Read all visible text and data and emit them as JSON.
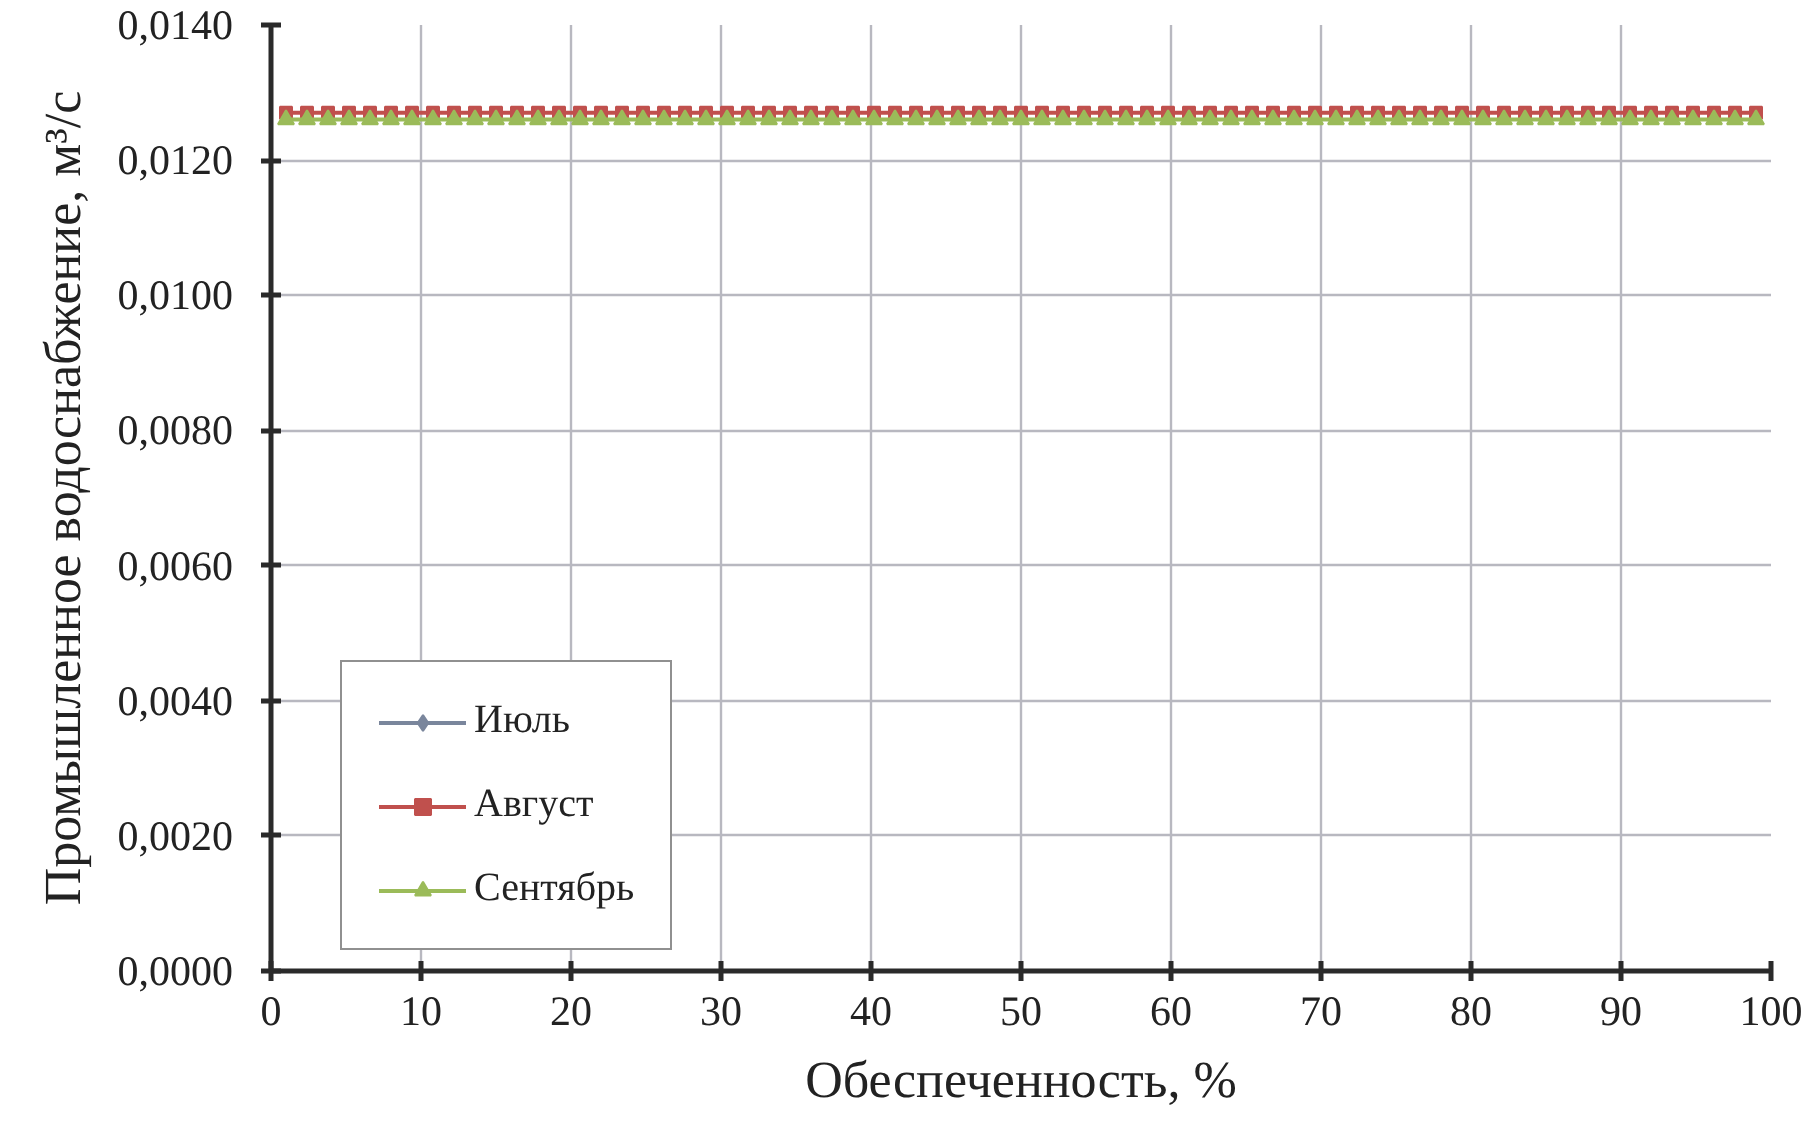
{
  "chart_data": {
    "type": "line",
    "xlabel": "Обеспеченность, %",
    "ylabel": "Промышленное водоснабжение, м³/с",
    "x": [
      1,
      2.4,
      3.8,
      5.2,
      6.6,
      8,
      9.4,
      10.8,
      12.2,
      13.6,
      15,
      16.4,
      17.8,
      19.2,
      20.6,
      22,
      23.4,
      24.8,
      26.2,
      27.6,
      29,
      30.4,
      31.8,
      33.2,
      34.6,
      36,
      37.4,
      38.8,
      40.2,
      41.6,
      43,
      44.4,
      45.8,
      47.2,
      48.6,
      50,
      51.4,
      52.8,
      54.2,
      55.6,
      57,
      58.4,
      59.8,
      61.2,
      62.6,
      64,
      65.4,
      66.8,
      68.2,
      69.6,
      71,
      72.4,
      73.8,
      75.2,
      76.6,
      78,
      79.4,
      80.8,
      82.2,
      83.6,
      85,
      86.4,
      87.8,
      89.2,
      90.6,
      92,
      93.4,
      94.8,
      96.2,
      97.6,
      99
    ],
    "series": [
      {
        "name": "Июль",
        "color": "#7a869c",
        "marker": "diamond",
        "values": [
          null,
          null,
          null,
          null,
          null,
          null,
          null,
          null,
          null,
          null,
          null,
          null,
          null,
          null,
          null,
          null,
          null,
          null,
          null,
          null,
          null,
          null,
          null,
          null,
          null,
          null,
          null,
          null,
          null,
          null,
          null,
          null,
          null,
          null,
          null,
          null,
          null,
          null,
          null,
          null,
          null,
          null,
          null,
          null,
          null,
          null,
          null,
          null,
          null,
          null,
          null,
          null,
          null,
          null,
          null,
          null,
          null,
          null,
          null,
          null,
          null,
          null,
          null,
          null,
          null,
          null,
          null,
          null,
          null,
          null,
          null
        ]
      },
      {
        "name": "Август",
        "color": "#c0504d",
        "marker": "square",
        "values": [
          0.0127,
          0.0127,
          0.0127,
          0.0127,
          0.0127,
          0.0127,
          0.0127,
          0.0127,
          0.0127,
          0.0127,
          0.0127,
          0.0127,
          0.0127,
          0.0127,
          0.0127,
          0.0127,
          0.0127,
          0.0127,
          0.0127,
          0.0127,
          0.0127,
          0.0127,
          0.0127,
          0.0127,
          0.0127,
          0.0127,
          0.0127,
          0.0127,
          0.0127,
          0.0127,
          0.0127,
          0.0127,
          0.0127,
          0.0127,
          0.0127,
          0.0127,
          0.0127,
          0.0127,
          0.0127,
          0.0127,
          0.0127,
          0.0127,
          0.0127,
          0.0127,
          0.0127,
          0.0127,
          0.0127,
          0.0127,
          0.0127,
          0.0127,
          0.0127,
          0.0127,
          0.0127,
          0.0127,
          0.0127,
          0.0127,
          0.0127,
          0.0127,
          0.0127,
          0.0127,
          0.0127,
          0.0127,
          0.0127,
          0.0127,
          0.0127,
          0.0127,
          0.0127,
          0.0127,
          0.0127,
          0.0127,
          0.0127
        ]
      },
      {
        "name": "Сентябрь",
        "color": "#9bbb59",
        "marker": "triangle",
        "values": [
          0.0126,
          0.0126,
          0.0126,
          0.0126,
          0.0126,
          0.0126,
          0.0126,
          0.0126,
          0.0126,
          0.0126,
          0.0126,
          0.0126,
          0.0126,
          0.0126,
          0.0126,
          0.0126,
          0.0126,
          0.0126,
          0.0126,
          0.0126,
          0.0126,
          0.0126,
          0.0126,
          0.0126,
          0.0126,
          0.0126,
          0.0126,
          0.0126,
          0.0126,
          0.0126,
          0.0126,
          0.0126,
          0.0126,
          0.0126,
          0.0126,
          0.0126,
          0.0126,
          0.0126,
          0.0126,
          0.0126,
          0.0126,
          0.0126,
          0.0126,
          0.0126,
          0.0126,
          0.0126,
          0.0126,
          0.0126,
          0.0126,
          0.0126,
          0.0126,
          0.0126,
          0.0126,
          0.0126,
          0.0126,
          0.0126,
          0.0126,
          0.0126,
          0.0126,
          0.0126,
          0.0126,
          0.0126,
          0.0126,
          0.0126,
          0.0126,
          0.0126,
          0.0126,
          0.0126,
          0.0126,
          0.0126,
          0.0126
        ]
      }
    ],
    "xlim": [
      0,
      100
    ],
    "xticks": [
      0,
      10,
      20,
      30,
      40,
      50,
      60,
      70,
      80,
      90,
      100
    ],
    "ylim": [
      0,
      0.014
    ],
    "yticks": [
      {
        "value": 0,
        "label": "0,0000"
      },
      {
        "value": 0.002,
        "label": "0,0020"
      },
      {
        "value": 0.004,
        "label": "0,0040"
      },
      {
        "value": 0.006,
        "label": "0,0060"
      },
      {
        "value": 0.008,
        "label": "0,0080"
      },
      {
        "value": 0.01,
        "label": "0,0100"
      },
      {
        "value": 0.012,
        "label": "0,0120"
      },
      {
        "value": 0.014,
        "label": "0,0140"
      }
    ],
    "grid": true,
    "legend": "bottom left"
  }
}
